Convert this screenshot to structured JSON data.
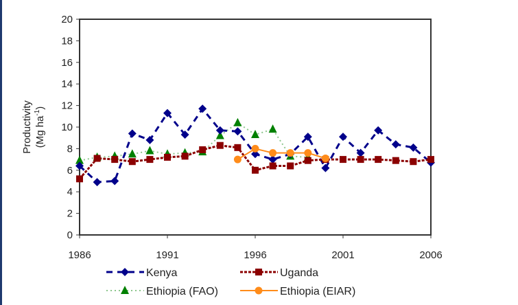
{
  "chart_data": {
    "type": "line",
    "title": "",
    "xlabel": "",
    "ylabel": "Productivity",
    "ylabel_unit": "(Mg ha",
    "ylabel_unit_sup": "-1",
    "ylabel_unit_close": ")",
    "xlim": [
      1986,
      2006
    ],
    "ylim": [
      0,
      20
    ],
    "x_ticks": [
      1986,
      1991,
      1996,
      2001,
      2006
    ],
    "y_ticks": [
      0,
      2,
      4,
      6,
      8,
      10,
      12,
      14,
      16,
      18,
      20
    ],
    "grid": false,
    "legend_position": "bottom",
    "series": [
      {
        "name": "Kenya",
        "color": "#00008b",
        "marker": "diamond",
        "line_style": "dashed",
        "x": [
          1986,
          1987,
          1988,
          1989,
          1990,
          1991,
          1992,
          1993,
          1994,
          1995,
          1996,
          1997,
          1998,
          1999,
          2000,
          2001,
          2002,
          2003,
          2004,
          2005,
          2006
        ],
        "values": [
          6.4,
          4.9,
          5.0,
          9.4,
          8.8,
          11.3,
          9.3,
          11.7,
          9.7,
          9.6,
          7.5,
          7.0,
          7.5,
          9.1,
          6.2,
          9.1,
          7.6,
          9.7,
          8.4,
          8.1,
          6.7
        ]
      },
      {
        "name": "Uganda",
        "color": "#8b0000",
        "marker": "square",
        "line_style": "dotted-thick",
        "x": [
          1986,
          1987,
          1988,
          1989,
          1990,
          1991,
          1992,
          1993,
          1994,
          1995,
          1996,
          1997,
          1998,
          1999,
          2000,
          2001,
          2002,
          2003,
          2004,
          2005,
          2006
        ],
        "values": [
          5.2,
          7.1,
          7.0,
          6.8,
          7.0,
          7.2,
          7.3,
          7.9,
          8.3,
          8.1,
          6.0,
          6.4,
          6.4,
          6.9,
          7.0,
          7.0,
          7.0,
          7.0,
          6.9,
          6.8,
          7.0
        ]
      },
      {
        "name": "Ethiopia (FAO)",
        "color": "#008000",
        "marker": "triangle",
        "line_style": "dotted-light",
        "x": [
          1986,
          1987,
          1988,
          1989,
          1990,
          1991,
          1992,
          1993,
          1994,
          1995,
          1996,
          1997,
          1998,
          1999
        ],
        "values": [
          6.9,
          7.2,
          7.3,
          7.5,
          7.8,
          7.5,
          7.6,
          7.7,
          9.2,
          10.4,
          9.3,
          9.8,
          7.3,
          7.2
        ]
      },
      {
        "name": "Ethiopia (EIAR)",
        "color": "#ff8c1a",
        "marker": "circle",
        "line_style": "solid",
        "x": [
          1995,
          1996,
          1997,
          1998,
          1999,
          2000
        ],
        "values": [
          7.0,
          8.0,
          7.6,
          7.6,
          7.6,
          7.1
        ]
      }
    ]
  }
}
